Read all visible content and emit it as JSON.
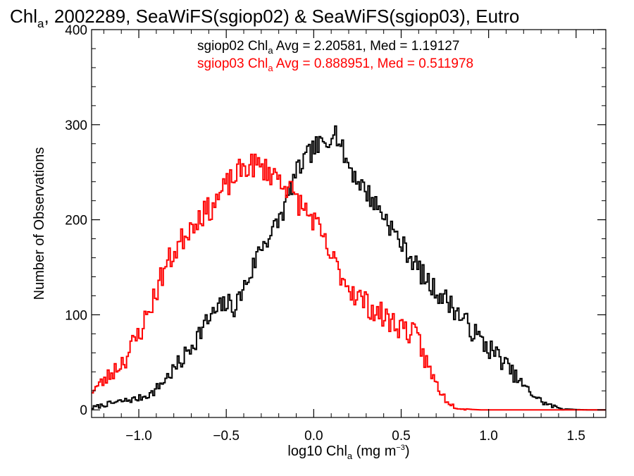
{
  "chart_data": {
    "type": "line",
    "step": true,
    "title": {
      "prefix": "Chl",
      "sub": "a",
      "suffix": ", 2002289, SeaWiFS(sgiop02) & SeaWiFS(sgiop03), Eutro"
    },
    "xlabel": {
      "prefix": "log10 Chl",
      "sub": "a",
      "mid": " (mg m",
      "sup": "−3",
      "end": ")"
    },
    "ylabel": "Number of Observations",
    "xlim": [
      -1.27,
      1.67
    ],
    "ylim": [
      -8,
      400
    ],
    "xticks": [
      -1.0,
      -0.5,
      0.0,
      0.5,
      1.0,
      1.5
    ],
    "xtick_labels": [
      "−1.0",
      "−0.5",
      "0.0",
      "0.5",
      "1.0",
      "1.5"
    ],
    "yticks": [
      0,
      100,
      200,
      300,
      400
    ],
    "ytick_labels": [
      "0",
      "100",
      "200",
      "300",
      "400"
    ],
    "grid": false,
    "series": [
      {
        "color": "#000000",
        "annotation": {
          "prefix": "sgiop02 Chl",
          "sub": "a",
          "suffix": " Avg = 2.20581, Med = 1.19127"
        },
        "knots": [
          [
            -1.27,
            2
          ],
          [
            -1.18,
            6
          ],
          [
            -1.1,
            9
          ],
          [
            -1.0,
            12
          ],
          [
            -0.92,
            18
          ],
          [
            -0.86,
            30
          ],
          [
            -0.8,
            42
          ],
          [
            -0.74,
            55
          ],
          [
            -0.7,
            68
          ],
          [
            -0.65,
            82
          ],
          [
            -0.6,
            95
          ],
          [
            -0.55,
            105
          ],
          [
            -0.5,
            112
          ],
          [
            -0.47,
            110
          ],
          [
            -0.45,
            108
          ],
          [
            -0.4,
            128
          ],
          [
            -0.35,
            148
          ],
          [
            -0.32,
            165
          ],
          [
            -0.28,
            178
          ],
          [
            -0.24,
            185
          ],
          [
            -0.2,
            200
          ],
          [
            -0.16,
            215
          ],
          [
            -0.12,
            240
          ],
          [
            -0.08,
            255
          ],
          [
            -0.04,
            265
          ],
          [
            0.0,
            275
          ],
          [
            0.04,
            278
          ],
          [
            0.08,
            280
          ],
          [
            0.11,
            300
          ],
          [
            0.14,
            285
          ],
          [
            0.18,
            265
          ],
          [
            0.24,
            245
          ],
          [
            0.3,
            230
          ],
          [
            0.36,
            215
          ],
          [
            0.42,
            200
          ],
          [
            0.48,
            180
          ],
          [
            0.54,
            165
          ],
          [
            0.6,
            148
          ],
          [
            0.66,
            132
          ],
          [
            0.72,
            122
          ],
          [
            0.78,
            112
          ],
          [
            0.84,
            98
          ],
          [
            0.9,
            85
          ],
          [
            0.96,
            72
          ],
          [
            1.02,
            62
          ],
          [
            1.08,
            52
          ],
          [
            1.14,
            38
          ],
          [
            1.2,
            25
          ],
          [
            1.26,
            15
          ],
          [
            1.32,
            7
          ],
          [
            1.38,
            3
          ],
          [
            1.44,
            1
          ],
          [
            1.5,
            0.3
          ],
          [
            1.56,
            0
          ],
          [
            1.67,
            0
          ]
        ],
        "noise": 10,
        "seed": 7
      },
      {
        "color": "#ff0000",
        "annotation": {
          "prefix": "sgiop03 Chl",
          "sub": "a",
          "suffix": " Avg = 0.888951, Med = 0.511978"
        },
        "knots": [
          [
            -1.27,
            20
          ],
          [
            -1.2,
            30
          ],
          [
            -1.15,
            40
          ],
          [
            -1.1,
            50
          ],
          [
            -1.05,
            62
          ],
          [
            -1.0,
            80
          ],
          [
            -0.95,
            100
          ],
          [
            -0.9,
            125
          ],
          [
            -0.85,
            150
          ],
          [
            -0.8,
            165
          ],
          [
            -0.75,
            180
          ],
          [
            -0.7,
            195
          ],
          [
            -0.65,
            205
          ],
          [
            -0.6,
            210
          ],
          [
            -0.55,
            222
          ],
          [
            -0.5,
            235
          ],
          [
            -0.45,
            245
          ],
          [
            -0.4,
            255
          ],
          [
            -0.35,
            258
          ],
          [
            -0.3,
            255
          ],
          [
            -0.25,
            250
          ],
          [
            -0.2,
            245
          ],
          [
            -0.15,
            235
          ],
          [
            -0.1,
            222
          ],
          [
            -0.05,
            210
          ],
          [
            0.0,
            200
          ],
          [
            0.05,
            180
          ],
          [
            0.1,
            160
          ],
          [
            0.15,
            145
          ],
          [
            0.2,
            130
          ],
          [
            0.25,
            120
          ],
          [
            0.3,
            112
          ],
          [
            0.35,
            104
          ],
          [
            0.4,
            98
          ],
          [
            0.45,
            92
          ],
          [
            0.5,
            88
          ],
          [
            0.55,
            82
          ],
          [
            0.6,
            72
          ],
          [
            0.63,
            58
          ],
          [
            0.66,
            42
          ],
          [
            0.7,
            28
          ],
          [
            0.75,
            12
          ],
          [
            0.8,
            4
          ],
          [
            0.85,
            1.5
          ],
          [
            0.9,
            0.5
          ],
          [
            0.95,
            0
          ],
          [
            1.67,
            0
          ]
        ],
        "noise": 12,
        "seed": 23
      }
    ]
  }
}
